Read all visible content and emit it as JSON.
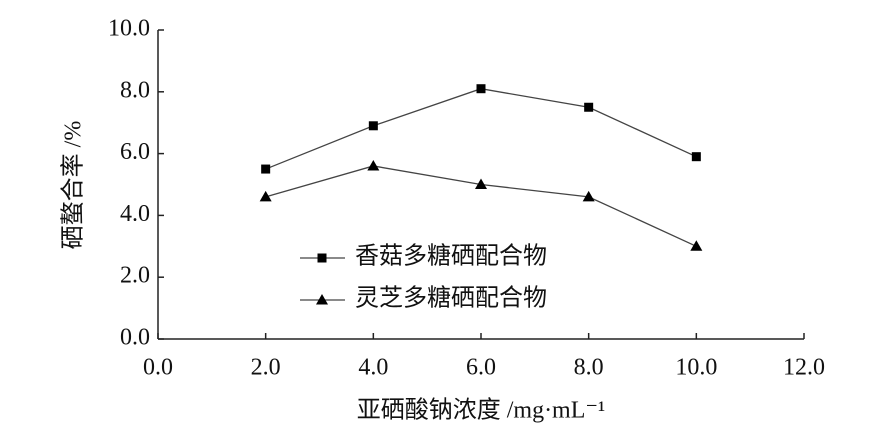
{
  "chart_data": {
    "type": "line",
    "x_label": "亚硒酸钠浓度 /mg·mL⁻¹",
    "y_label": "硒螯合率 /%",
    "x": [
      2,
      4,
      6,
      8,
      10
    ],
    "series": [
      {
        "name": "香菇多糖硒配合物",
        "color": "#000000",
        "marker": "square",
        "values": [
          5.5,
          6.9,
          8.1,
          7.5,
          5.9
        ]
      },
      {
        "name": "灵芝多糖硒配合物",
        "color": "#000000",
        "marker": "triangle",
        "values": [
          4.6,
          5.6,
          5.0,
          4.6,
          3.0
        ]
      }
    ],
    "xlim": [
      0,
      12
    ],
    "xticks": [
      {
        "value": 0,
        "label": "0.0"
      },
      {
        "value": 2,
        "label": "2.0"
      },
      {
        "value": 4,
        "label": "4.0"
      },
      {
        "value": 6,
        "label": "6.0"
      },
      {
        "value": 8,
        "label": "8.0"
      },
      {
        "value": 10,
        "label": "10.0"
      },
      {
        "value": 12,
        "label": "12.0"
      }
    ],
    "ylim": [
      0,
      10
    ],
    "yticks": [
      {
        "value": 0,
        "label": "0.0"
      },
      {
        "value": 2,
        "label": "2.0"
      },
      {
        "value": 4,
        "label": "4.0"
      },
      {
        "value": 6,
        "label": "6.0"
      },
      {
        "value": 8,
        "label": "8.0"
      },
      {
        "value": 10,
        "label": "10.0"
      }
    ],
    "grid": false
  }
}
